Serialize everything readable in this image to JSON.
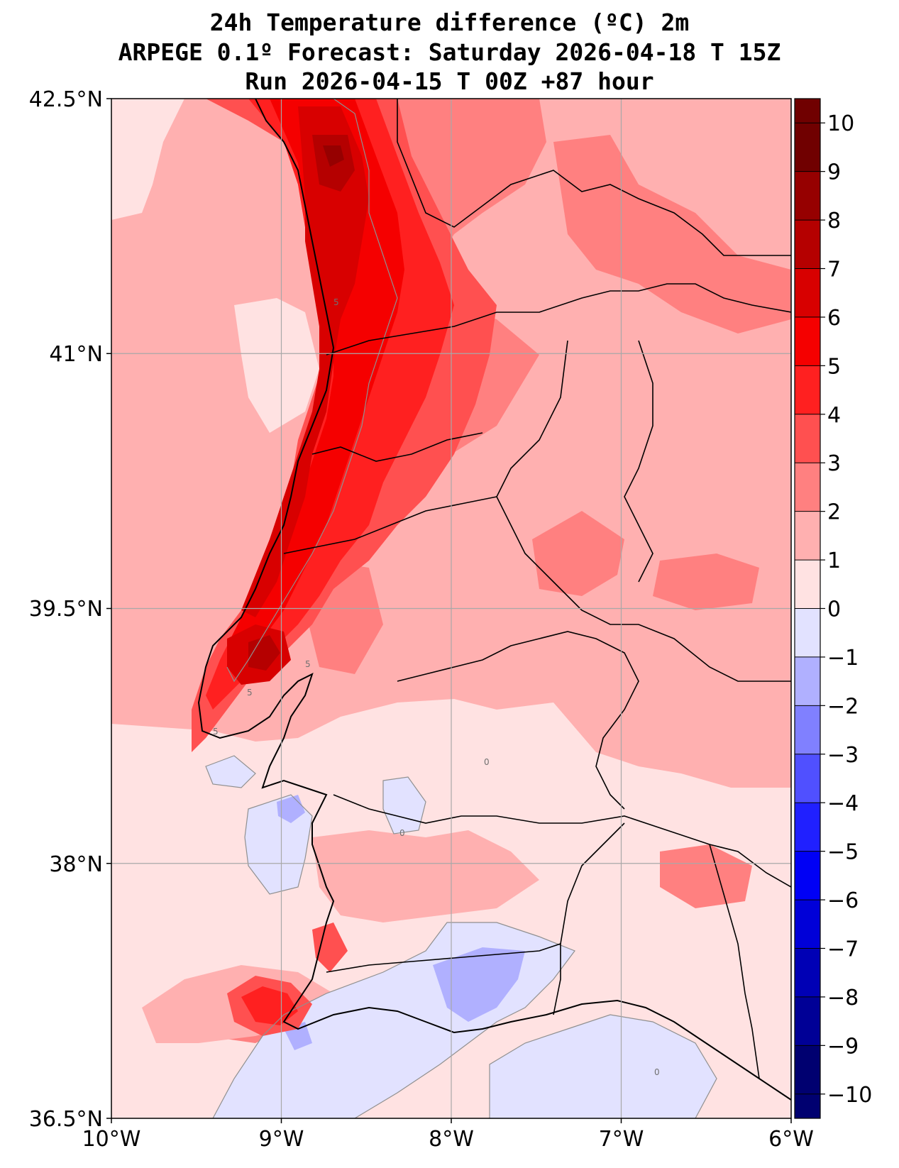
{
  "title": {
    "line1": "24h Temperature difference (ºC) 2m",
    "line2": "ARPEGE 0.1º Forecast: Saturday 2026-04-18 T 15Z",
    "line3": "Run 2026-04-15 T 00Z +87 hour"
  },
  "map": {
    "lon_range": [
      -10,
      -6
    ],
    "lat_range": [
      36.5,
      42.5
    ],
    "lat_ticks": [
      "42.5°N",
      "41°N",
      "39.5°N",
      "38°N",
      "36.5°N"
    ],
    "lon_ticks": [
      "10°W",
      "9°W",
      "8°W",
      "7°W",
      "6°W"
    ],
    "grid": true,
    "contour_labels": [
      "5",
      "5",
      "5",
      "5",
      "0",
      "0",
      "0"
    ]
  },
  "colorbar": {
    "ticks": [
      "10",
      "9",
      "8",
      "7",
      "6",
      "5",
      "4",
      "3",
      "2",
      "1",
      "0",
      "−1",
      "−2",
      "−3",
      "−4",
      "−5",
      "−6",
      "−7",
      "−8",
      "−9",
      "−10"
    ],
    "colors": [
      "#700000",
      "#960000",
      "#b50000",
      "#d80000",
      "#f50000",
      "#ff2020",
      "#ff5050",
      "#ff8080",
      "#ffb0b0",
      "#ffe2e2",
      "#e2e2ff",
      "#b0b0ff",
      "#8080ff",
      "#5050ff",
      "#2020ff",
      "#0000f5",
      "#0000d8",
      "#0000b5",
      "#000096",
      "#000070"
    ]
  }
}
